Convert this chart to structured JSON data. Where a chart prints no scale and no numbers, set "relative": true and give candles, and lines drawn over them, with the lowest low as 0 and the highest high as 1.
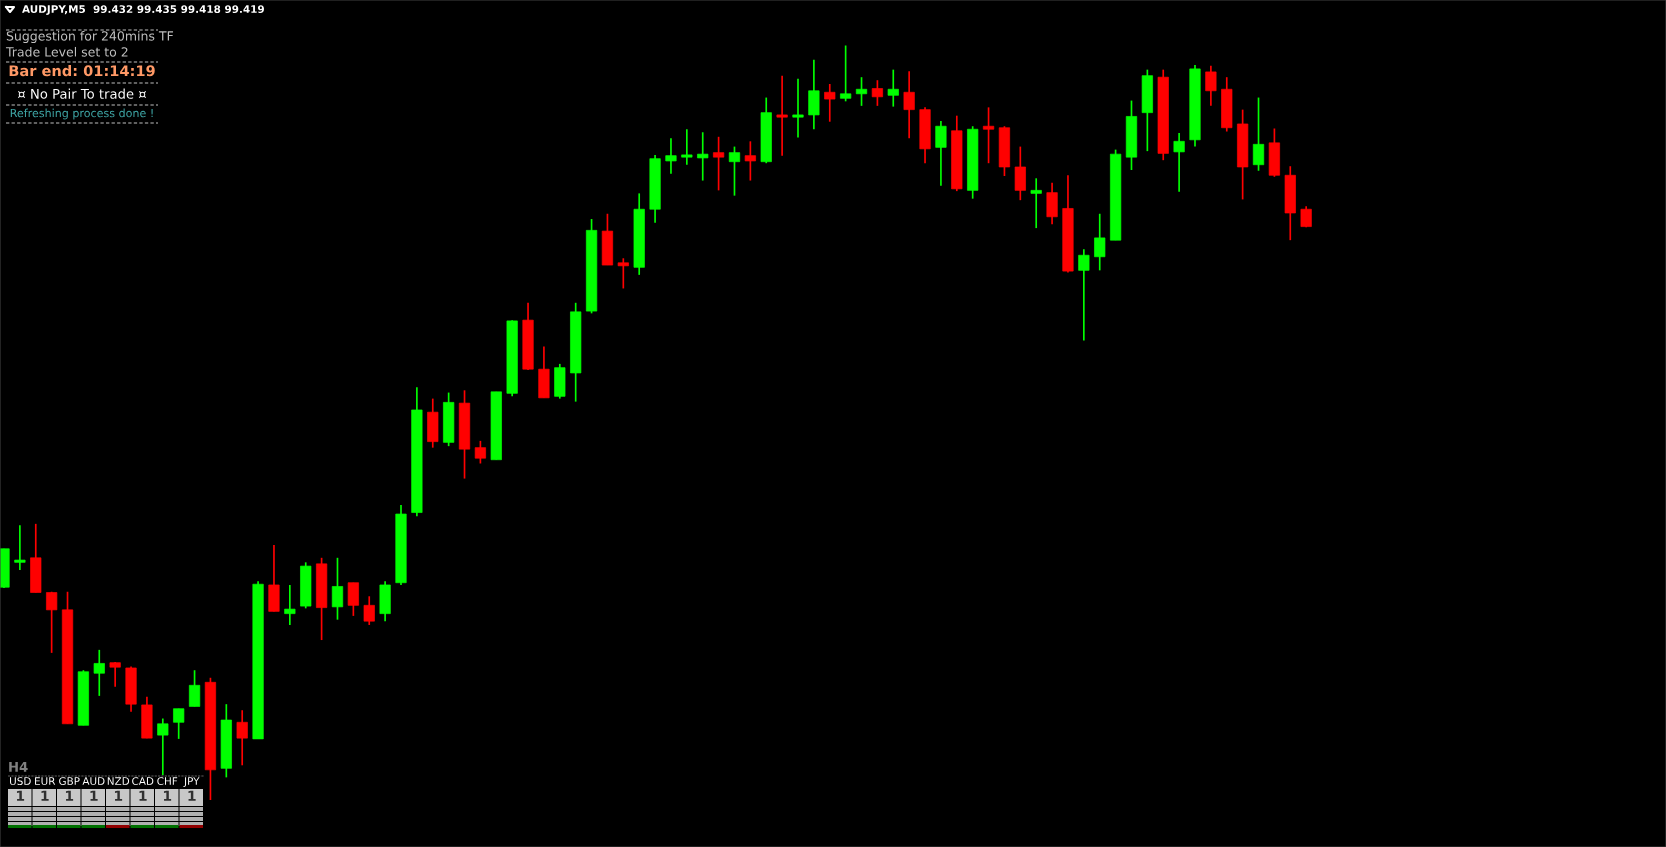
{
  "chart_data": {
    "type": "candlestick",
    "relative": true,
    "title": "AUDJPY,M5  99.432 99.435 99.418 99.419",
    "annotations": [
      "Suggestion for 240mins TF",
      "Trade Level set to 2",
      "Bar end: 01:14:19",
      "¤ No Pair To trade ¤",
      "Refreshing process done !",
      "H4",
      "USD",
      "EUR",
      "GBP",
      "AUD",
      "NZD",
      "CAD",
      "CHF",
      "JPY",
      "1",
      "1",
      "1",
      "1",
      "1",
      "1",
      "1",
      "1"
    ],
    "categories": [
      null,
      null,
      null,
      null,
      null,
      null,
      null,
      null,
      null,
      null,
      null,
      null,
      null,
      null,
      null,
      null,
      null,
      null,
      null,
      null,
      null,
      null,
      null,
      null,
      null,
      null,
      null,
      null,
      null,
      null,
      null,
      null,
      null,
      null,
      null,
      null,
      null,
      null,
      null,
      null,
      null,
      null,
      null,
      null,
      null,
      null,
      null,
      null,
      null,
      null,
      null,
      null,
      null,
      null,
      null,
      null,
      null,
      null,
      null,
      null,
      null,
      null,
      null,
      null,
      null,
      null,
      null,
      null,
      null,
      null,
      null,
      null,
      null,
      null,
      null,
      null,
      null,
      null,
      null,
      null,
      null,
      null,
      null
    ],
    "ohlc": [
      [
        0.282,
        0.333,
        0.281,
        0.333
      ],
      [
        0.315,
        0.364,
        0.305,
        0.317
      ],
      [
        0.321,
        0.366,
        0.275,
        0.275
      ],
      [
        0.275,
        0.276,
        0.195,
        0.252
      ],
      [
        0.252,
        0.276,
        0.101,
        0.101
      ],
      [
        0.099,
        0.172,
        0.099,
        0.17
      ],
      [
        0.168,
        0.199,
        0.138,
        0.181
      ],
      [
        0.182,
        0.183,
        0.15,
        0.176
      ],
      [
        0.175,
        0.177,
        0.117,
        0.127
      ],
      [
        0.126,
        0.137,
        0.082,
        0.082
      ],
      [
        0.086,
        0.108,
        0.033,
        0.101
      ],
      [
        0.103,
        0.121,
        0.081,
        0.121
      ],
      [
        0.124,
        0.172,
        0.124,
        0.152
      ],
      [
        0.156,
        0.162,
        0.0,
        0.04
      ],
      [
        0.042,
        0.127,
        0.03,
        0.106
      ],
      [
        0.103,
        0.119,
        0.046,
        0.082
      ],
      [
        0.081,
        0.29,
        0.081,
        0.286
      ],
      [
        0.285,
        0.338,
        0.25,
        0.25
      ],
      [
        0.247,
        0.285,
        0.232,
        0.253
      ],
      [
        0.257,
        0.315,
        0.254,
        0.31
      ],
      [
        0.313,
        0.321,
        0.212,
        0.255
      ],
      [
        0.256,
        0.321,
        0.239,
        0.283
      ],
      [
        0.288,
        0.288,
        0.244,
        0.258
      ],
      [
        0.258,
        0.27,
        0.232,
        0.237
      ],
      [
        0.247,
        0.29,
        0.237,
        0.285
      ],
      [
        0.288,
        0.391,
        0.285,
        0.379
      ],
      [
        0.381,
        0.547,
        0.376,
        0.517
      ],
      [
        0.514,
        0.532,
        0.467,
        0.475
      ],
      [
        0.474,
        0.54,
        0.469,
        0.527
      ],
      [
        0.526,
        0.543,
        0.426,
        0.465
      ],
      [
        0.467,
        0.476,
        0.446,
        0.453
      ],
      [
        0.451,
        0.541,
        0.451,
        0.541
      ],
      [
        0.539,
        0.636,
        0.535,
        0.635
      ],
      [
        0.636,
        0.659,
        0.57,
        0.571
      ],
      [
        0.571,
        0.601,
        0.533,
        0.533
      ],
      [
        0.535,
        0.578,
        0.532,
        0.573
      ],
      [
        0.566,
        0.659,
        0.528,
        0.647
      ],
      [
        0.648,
        0.77,
        0.645,
        0.755
      ],
      [
        0.754,
        0.777,
        0.709,
        0.709
      ],
      [
        0.712,
        0.718,
        0.678,
        0.708
      ],
      [
        0.706,
        0.804,
        0.696,
        0.783
      ],
      [
        0.783,
        0.855,
        0.765,
        0.85
      ],
      [
        0.847,
        0.877,
        0.83,
        0.854
      ],
      [
        0.852,
        0.889,
        0.842,
        0.853
      ],
      [
        0.851,
        0.885,
        0.821,
        0.856
      ],
      [
        0.858,
        0.879,
        0.808,
        0.852
      ],
      [
        0.846,
        0.866,
        0.801,
        0.858
      ],
      [
        0.854,
        0.873,
        0.821,
        0.847
      ],
      [
        0.846,
        0.931,
        0.844,
        0.911
      ],
      [
        0.906,
        0.96,
        0.854,
        0.905
      ],
      [
        0.905,
        0.956,
        0.878,
        0.906
      ],
      [
        0.908,
        0.981,
        0.889,
        0.94
      ],
      [
        0.938,
        0.949,
        0.899,
        0.929
      ],
      [
        0.93,
        1.0,
        0.926,
        0.936
      ],
      [
        0.936,
        0.958,
        0.92,
        0.942
      ],
      [
        0.943,
        0.954,
        0.92,
        0.932
      ],
      [
        0.934,
        0.968,
        0.919,
        0.942
      ],
      [
        0.938,
        0.966,
        0.877,
        0.915
      ],
      [
        0.915,
        0.918,
        0.844,
        0.863
      ],
      [
        0.865,
        0.9,
        0.814,
        0.893
      ],
      [
        0.887,
        0.907,
        0.807,
        0.81
      ],
      [
        0.808,
        0.893,
        0.797,
        0.889
      ],
      [
        0.893,
        0.918,
        0.844,
        0.889
      ],
      [
        0.891,
        0.893,
        0.827,
        0.839
      ],
      [
        0.839,
        0.866,
        0.795,
        0.808
      ],
      [
        0.804,
        0.824,
        0.758,
        0.808
      ],
      [
        0.805,
        0.818,
        0.763,
        0.773
      ],
      [
        0.784,
        0.828,
        0.699,
        0.701
      ],
      [
        0.702,
        0.73,
        0.609,
        0.722
      ],
      [
        0.72,
        0.777,
        0.702,
        0.745
      ],
      [
        0.742,
        0.862,
        0.742,
        0.856
      ],
      [
        0.852,
        0.927,
        0.835,
        0.906
      ],
      [
        0.911,
        0.968,
        0.86,
        0.96
      ],
      [
        0.958,
        0.968,
        0.848,
        0.857
      ],
      [
        0.859,
        0.884,
        0.806,
        0.873
      ],
      [
        0.875,
        0.974,
        0.866,
        0.969
      ],
      [
        0.965,
        0.973,
        0.92,
        0.94
      ],
      [
        0.942,
        0.958,
        0.886,
        0.891
      ],
      [
        0.896,
        0.915,
        0.796,
        0.839
      ],
      [
        0.842,
        0.931,
        0.834,
        0.869
      ],
      [
        0.871,
        0.89,
        0.826,
        0.828
      ],
      [
        0.828,
        0.84,
        0.742,
        0.778
      ],
      [
        0.783,
        0.787,
        0.759,
        0.76
      ]
    ],
    "colors": [
      "#00ff00",
      "#00ff00",
      "#ff0000",
      "#ff0000",
      "#ff0000",
      "#00ff00",
      "#00ff00",
      "#ff0000",
      "#ff0000",
      "#ff0000",
      "#00ff00",
      "#00ff00",
      "#00ff00",
      "#ff0000",
      "#00ff00",
      "#ff0000",
      "#00ff00",
      "#ff0000",
      "#00ff00",
      "#00ff00",
      "#ff0000",
      "#00ff00",
      "#ff0000",
      "#ff0000",
      "#00ff00",
      "#00ff00",
      "#00ff00",
      "#ff0000",
      "#00ff00",
      "#ff0000",
      "#ff0000",
      "#00ff00",
      "#00ff00",
      "#ff0000",
      "#ff0000",
      "#00ff00",
      "#00ff00",
      "#00ff00",
      "#ff0000",
      "#ff0000",
      "#00ff00",
      "#00ff00",
      "#00ff00",
      "#00ff00",
      "#00ff00",
      "#ff0000",
      "#00ff00",
      "#ff0000",
      "#00ff00",
      "#ff0000",
      "#00ff00",
      "#00ff00",
      "#ff0000",
      "#00ff00",
      "#00ff00",
      "#ff0000",
      "#00ff00",
      "#ff0000",
      "#ff0000",
      "#00ff00",
      "#ff0000",
      "#00ff00",
      "#ff0000",
      "#ff0000",
      "#ff0000",
      "#00ff00",
      "#ff0000",
      "#ff0000",
      "#00ff00",
      "#00ff00",
      "#00ff00",
      "#00ff00",
      "#00ff00",
      "#ff0000",
      "#00ff00",
      "#00ff00",
      "#ff0000",
      "#ff0000",
      "#ff0000",
      "#00ff00",
      "#ff0000",
      "#ff0000",
      "#ff0000"
    ]
  }
}
